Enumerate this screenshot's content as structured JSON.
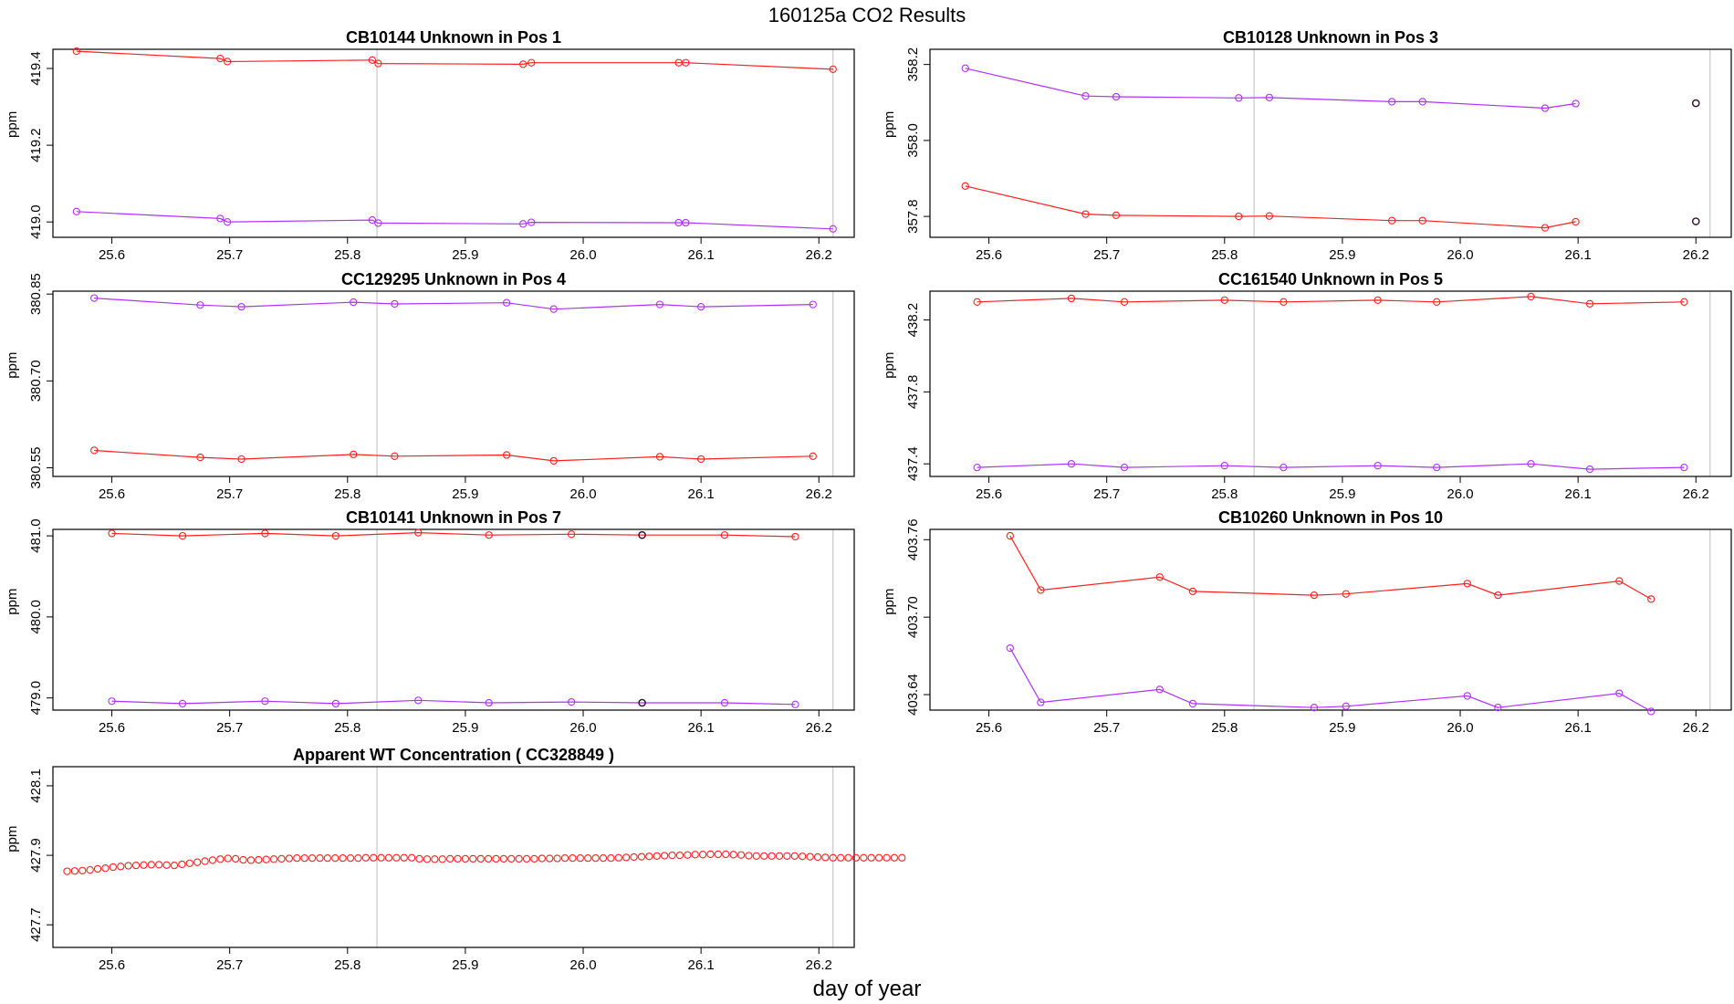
{
  "page_title": "160125a  CO2 Results",
  "x_axis_title": "day of year",
  "colors": {
    "series_a": "#ff2020",
    "series_b": "#b030ff",
    "marker_dark": "#301030",
    "vline": "#c8c8c8",
    "frame": "#000000"
  },
  "chart_data": [
    {
      "type": "line",
      "title": "CB10144    Unknown in Pos 1",
      "ylabel": "ppm",
      "xlim": [
        25.55,
        26.23
      ],
      "ylim": [
        418.96,
        419.45
      ],
      "yticks": [
        419.0,
        419.2,
        419.4
      ],
      "ytick_labels": [
        "419.0",
        "419.2",
        "419.4"
      ],
      "xticks": [
        25.6,
        25.7,
        25.8,
        25.9,
        26.0,
        26.1,
        26.2
      ],
      "xtick_labels": [
        "25.6",
        "25.7",
        "25.8",
        "25.9",
        "26.0",
        "26.1",
        "26.2"
      ],
      "vlines": [
        25.825,
        26.212
      ],
      "series": [
        {
          "name": "red",
          "color": "#ff2020",
          "x": [
            25.57,
            25.692,
            25.698,
            25.821,
            25.826,
            25.949,
            25.956,
            26.081,
            26.087,
            26.212
          ],
          "y": [
            419.445,
            419.426,
            419.418,
            419.422,
            419.413,
            419.411,
            419.415,
            419.415,
            419.415,
            419.398
          ]
        },
        {
          "name": "purple",
          "color": "#b030ff",
          "x": [
            25.57,
            25.692,
            25.698,
            25.821,
            25.826,
            25.949,
            25.956,
            26.081,
            26.087,
            26.212
          ],
          "y": [
            419.027,
            419.009,
            419.0,
            419.005,
            418.997,
            418.995,
            418.999,
            418.998,
            418.998,
            418.982
          ]
        }
      ],
      "special_points": []
    },
    {
      "type": "line",
      "title": "CB10128    Unknown in Pos 3",
      "ylabel": "ppm",
      "xlim": [
        25.55,
        26.23
      ],
      "ylim": [
        357.745,
        358.24
      ],
      "yticks": [
        357.8,
        358.0,
        358.2
      ],
      "ytick_labels": [
        "357.8",
        "358.0",
        "358.2"
      ],
      "xticks": [
        25.6,
        25.7,
        25.8,
        25.9,
        26.0,
        26.1,
        26.2
      ],
      "xtick_labels": [
        "25.6",
        "25.7",
        "25.8",
        "25.9",
        "26.0",
        "26.1",
        "26.2"
      ],
      "vlines": [
        25.825,
        26.212
      ],
      "series": [
        {
          "name": "purple",
          "color": "#b030ff",
          "x": [
            25.58,
            25.682,
            25.708,
            25.812,
            25.838,
            25.942,
            25.968,
            26.072,
            26.098
          ],
          "y": [
            358.19,
            358.117,
            358.115,
            358.112,
            358.113,
            358.102,
            358.102,
            358.085,
            358.097
          ]
        },
        {
          "name": "red",
          "color": "#ff2020",
          "x": [
            25.58,
            25.682,
            25.708,
            25.812,
            25.838,
            25.942,
            25.968,
            26.072,
            26.098
          ],
          "y": [
            357.88,
            357.806,
            357.803,
            357.8,
            357.801,
            357.789,
            357.789,
            357.77,
            357.786
          ]
        }
      ],
      "special_points": [
        {
          "x": 26.2,
          "y": 358.098,
          "color": "#301030"
        },
        {
          "x": 26.2,
          "y": 357.787,
          "color": "#301030"
        }
      ]
    },
    {
      "type": "line",
      "title": "CC129295    Unknown in Pos 4",
      "ylabel": "ppm",
      "xlim": [
        25.55,
        26.23
      ],
      "ylim": [
        380.535,
        380.855
      ],
      "yticks": [
        380.55,
        380.7,
        380.85
      ],
      "ytick_labels": [
        "380.55",
        "380.70",
        "380.85"
      ],
      "xticks": [
        25.6,
        25.7,
        25.8,
        25.9,
        26.0,
        26.1,
        26.2
      ],
      "xtick_labels": [
        "25.6",
        "25.7",
        "25.8",
        "25.9",
        "26.0",
        "26.1",
        "26.2"
      ],
      "vlines": [
        25.825,
        26.212
      ],
      "series": [
        {
          "name": "purple",
          "color": "#b030ff",
          "x": [
            25.585,
            25.675,
            25.71,
            25.805,
            25.84,
            25.935,
            25.975,
            26.065,
            26.1,
            26.195
          ],
          "y": [
            380.843,
            380.831,
            380.828,
            380.836,
            380.833,
            380.835,
            380.824,
            380.832,
            380.828,
            380.832
          ]
        },
        {
          "name": "red",
          "color": "#ff2020",
          "x": [
            25.585,
            25.675,
            25.71,
            25.805,
            25.84,
            25.935,
            25.975,
            26.065,
            26.1,
            26.195
          ],
          "y": [
            380.58,
            380.568,
            380.565,
            380.573,
            380.57,
            380.572,
            380.562,
            380.569,
            380.565,
            380.57
          ]
        }
      ],
      "special_points": []
    },
    {
      "type": "line",
      "title": "CC161540    Unknown in Pos 5",
      "ylabel": "ppm",
      "xlim": [
        25.55,
        26.23
      ],
      "ylim": [
        437.33,
        438.36
      ],
      "yticks": [
        437.4,
        437.8,
        438.2
      ],
      "ytick_labels": [
        "437.4",
        "437.8",
        "438.2"
      ],
      "xticks": [
        25.6,
        25.7,
        25.8,
        25.9,
        26.0,
        26.1,
        26.2
      ],
      "xtick_labels": [
        "25.6",
        "25.7",
        "25.8",
        "25.9",
        "26.0",
        "26.1",
        "26.2"
      ],
      "vlines": [
        25.825,
        26.212
      ],
      "series": [
        {
          "name": "red",
          "color": "#ff2020",
          "x": [
            25.59,
            25.67,
            25.715,
            25.8,
            25.85,
            25.93,
            25.98,
            26.06,
            26.11,
            26.19
          ],
          "y": [
            438.3,
            438.32,
            438.3,
            438.31,
            438.3,
            438.31,
            438.3,
            438.33,
            438.29,
            438.3
          ]
        },
        {
          "name": "purple",
          "color": "#b030ff",
          "x": [
            25.59,
            25.67,
            25.715,
            25.8,
            25.85,
            25.93,
            25.98,
            26.06,
            26.11,
            26.19
          ],
          "y": [
            437.38,
            437.4,
            437.38,
            437.39,
            437.38,
            437.39,
            437.38,
            437.4,
            437.37,
            437.38
          ]
        }
      ],
      "special_points": []
    },
    {
      "type": "line",
      "title": "CB10141    Unknown in Pos 7",
      "ylabel": "ppm",
      "xlim": [
        25.55,
        26.23
      ],
      "ylim": [
        478.85,
        481.08
      ],
      "yticks": [
        479.0,
        480.0,
        481.0
      ],
      "ytick_labels": [
        "479.0",
        "480.0",
        "481.0"
      ],
      "xticks": [
        25.6,
        25.7,
        25.8,
        25.9,
        26.0,
        26.1,
        26.2
      ],
      "xtick_labels": [
        "25.6",
        "25.7",
        "25.8",
        "25.9",
        "26.0",
        "26.1",
        "26.2"
      ],
      "vlines": [
        25.825,
        26.212
      ],
      "series": [
        {
          "name": "red",
          "color": "#ff2020",
          "x": [
            25.6,
            25.66,
            25.73,
            25.79,
            25.86,
            25.92,
            25.99,
            26.05,
            26.12,
            26.18
          ],
          "y": [
            481.03,
            481.0,
            481.03,
            481.0,
            481.04,
            481.01,
            481.02,
            481.01,
            481.01,
            480.99
          ]
        },
        {
          "name": "purple",
          "color": "#b030ff",
          "x": [
            25.6,
            25.66,
            25.73,
            25.79,
            25.86,
            25.92,
            25.99,
            26.05,
            26.12,
            26.18
          ],
          "y": [
            478.96,
            478.93,
            478.96,
            478.93,
            478.97,
            478.94,
            478.95,
            478.94,
            478.94,
            478.92
          ]
        }
      ],
      "special_points": [
        {
          "x": 26.05,
          "y": 481.01,
          "color": "#301030"
        },
        {
          "x": 26.05,
          "y": 478.94,
          "color": "#301030"
        }
      ]
    },
    {
      "type": "line",
      "title": "CB10260    Unknown in Pos 10",
      "ylabel": "ppm",
      "xlim": [
        25.55,
        26.23
      ],
      "ylim": [
        403.628,
        403.768
      ],
      "yticks": [
        403.64,
        403.7,
        403.76
      ],
      "ytick_labels": [
        "403.64",
        "403.70",
        "403.76"
      ],
      "xticks": [
        25.6,
        25.7,
        25.8,
        25.9,
        26.0,
        26.1,
        26.2
      ],
      "xtick_labels": [
        "25.6",
        "25.7",
        "25.8",
        "25.9",
        "26.0",
        "26.1",
        "26.2"
      ],
      "vlines": [
        25.825,
        26.212
      ],
      "series": [
        {
          "name": "red",
          "color": "#ff2020",
          "x": [
            25.618,
            25.644,
            25.745,
            25.773,
            25.876,
            25.903,
            26.006,
            26.032,
            26.135,
            26.162
          ],
          "y": [
            403.763,
            403.721,
            403.731,
            403.72,
            403.717,
            403.718,
            403.726,
            403.717,
            403.728,
            403.714
          ]
        },
        {
          "name": "purple",
          "color": "#b030ff",
          "x": [
            25.618,
            25.644,
            25.745,
            25.773,
            25.876,
            25.903,
            26.006,
            26.032,
            26.135,
            26.162
          ],
          "y": [
            403.676,
            403.634,
            403.644,
            403.633,
            403.63,
            403.631,
            403.639,
            403.63,
            403.641,
            403.627
          ]
        }
      ],
      "special_points": []
    },
    {
      "type": "scatter",
      "title": "Apparent WT Concentration ( CC328849 )",
      "ylabel": "ppm",
      "xlim": [
        25.55,
        26.23
      ],
      "ylim": [
        427.635,
        428.155
      ],
      "yticks": [
        427.7,
        427.9,
        428.1
      ],
      "ytick_labels": [
        "427.7",
        "427.9",
        "428.1"
      ],
      "xticks": [
        25.6,
        25.7,
        25.8,
        25.9,
        26.0,
        26.1,
        26.2
      ],
      "xtick_labels": [
        "25.6",
        "25.7",
        "25.8",
        "25.9",
        "26.0",
        "26.1",
        "26.2"
      ],
      "vlines": [
        25.825,
        26.212
      ],
      "series": [
        {
          "name": "WT",
          "color": "#ff2020",
          "x_start": 25.562,
          "x_step": 0.0065,
          "y": [
            427.854,
            427.855,
            427.856,
            427.858,
            427.861,
            427.863,
            427.866,
            427.868,
            427.87,
            427.871,
            427.872,
            427.873,
            427.873,
            427.872,
            427.871,
            427.874,
            427.877,
            427.88,
            427.883,
            427.886,
            427.889,
            427.891,
            427.89,
            427.887,
            427.886,
            427.887,
            427.888,
            427.889,
            427.89,
            427.891,
            427.892,
            427.892,
            427.892,
            427.892,
            427.892,
            427.892,
            427.892,
            427.892,
            427.892,
            427.893,
            427.893,
            427.893,
            427.893,
            427.893,
            427.893,
            427.893,
            427.89,
            427.889,
            427.889,
            427.889,
            427.89,
            427.89,
            427.89,
            427.89,
            427.89,
            427.89,
            427.89,
            427.89,
            427.89,
            427.89,
            427.89,
            427.89,
            427.891,
            427.891,
            427.891,
            427.892,
            427.892,
            427.892,
            427.892,
            427.892,
            427.892,
            427.892,
            427.893,
            427.894,
            427.895,
            427.896,
            427.897,
            427.898,
            427.899,
            427.9,
            427.9,
            427.901,
            427.902,
            427.902,
            427.903,
            427.903,
            427.903,
            427.902,
            427.901,
            427.899,
            427.898,
            427.898,
            427.898,
            427.898,
            427.898,
            427.898,
            427.897,
            427.896,
            427.895,
            427.894,
            427.893,
            427.893,
            427.893,
            427.893,
            427.893,
            427.893,
            427.893,
            427.893,
            427.893,
            427.893
          ]
        }
      ],
      "special_points": []
    }
  ]
}
